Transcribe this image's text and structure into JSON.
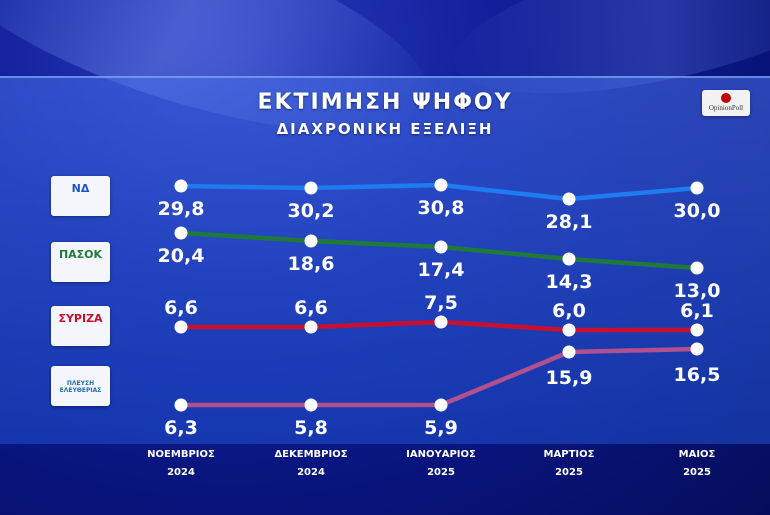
{
  "header": {
    "title": "ΕΚΤΙΜΗΣΗ ΨΗΦΟΥ",
    "subtitle": "ΔΙΑΧΡΟΝΙΚΗ ΕΞΕΛΙΞΗ"
  },
  "pollster": "OpinionPoll",
  "parties": [
    {
      "name": "ΝΔ",
      "logo_text": "ΝΔ",
      "color": "#1e7cf0",
      "logo_color": "#1a55c8"
    },
    {
      "name": "ΠΑΣΟΚ",
      "logo_text": "ΠΑΣΟΚ",
      "color": "#1f7a3a",
      "logo_color": "#1f7a3a"
    },
    {
      "name": "ΣΥΡΙΖΑ",
      "logo_text": "ΣΥΡΙΖΑ",
      "color": "#c8102e",
      "logo_color": "#c8102e"
    },
    {
      "name": "ΠΛΕΥΣΗ ΕΛΕΥΘΕΡΙΑΣ",
      "logo_text": "ΠΛΕΥΣΗ ΕΛΕΥΘΕΡΙΑΣ",
      "color": "#b0508e",
      "logo_color": "#1a6fb5"
    }
  ],
  "chart_data": {
    "type": "line",
    "title": "ΕΚΤΙΜΗΣΗ ΨΗΦΟΥ",
    "subtitle": "ΔΙΑΧΡΟΝΙΚΗ ΕΞΕΛΙΞΗ",
    "categories": [
      {
        "month": "ΝΟΕΜΒΡΙΟΣ",
        "year": "2024"
      },
      {
        "month": "ΔΕΚΕΜΒΡΙΟΣ",
        "year": "2024"
      },
      {
        "month": "ΙΑΝΟΥΑΡΙΟΣ",
        "year": "2025"
      },
      {
        "month": "ΜΑΡΤΙΟΣ",
        "year": "2025"
      },
      {
        "month": "ΜΑΙΟΣ",
        "year": "2025"
      }
    ],
    "series": [
      {
        "name": "ΝΔ",
        "values": [
          29.8,
          30.2,
          30.8,
          28.1,
          30.0
        ],
        "labels": [
          "29,8",
          "30,2",
          "30,8",
          "28,1",
          "30,0"
        ],
        "color": "#1e7cf0",
        "label_pos": "below"
      },
      {
        "name": "ΠΑΣΟΚ",
        "values": [
          20.4,
          18.6,
          17.4,
          14.3,
          13.0
        ],
        "labels": [
          "20,4",
          "18,6",
          "17,4",
          "14,3",
          "13,0"
        ],
        "color": "#1f7a3a",
        "label_pos": "below"
      },
      {
        "name": "ΣΥΡΙΖΑ",
        "values": [
          6.6,
          6.6,
          7.5,
          6.0,
          6.1
        ],
        "labels": [
          "6,6",
          "6,6",
          "7,5",
          "6,0",
          "6,1"
        ],
        "color": "#c8102e",
        "label_pos": "above"
      },
      {
        "name": "ΠΛΕΥΣΗ ΕΛΕΥΘΕΡΙΑΣ",
        "values": [
          6.3,
          5.8,
          5.9,
          15.9,
          16.5
        ],
        "labels": [
          "6,3",
          "5,8",
          "5,9",
          "15,9",
          "16,5"
        ],
        "color": "#b0508e",
        "label_pos": "below"
      }
    ],
    "grid": false,
    "legend": "left"
  }
}
